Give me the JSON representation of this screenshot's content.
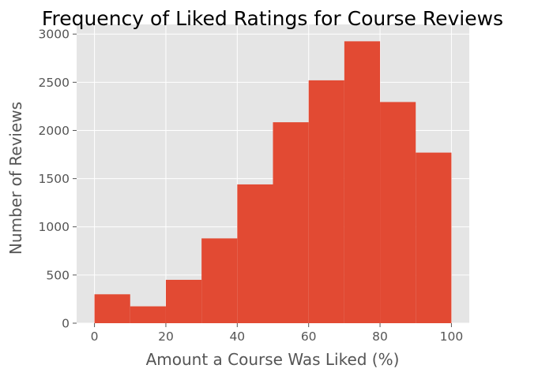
{
  "chart_data": {
    "type": "bar",
    "title": "Frequency of Liked Ratings for Course Reviews",
    "xlabel": "Amount a Course Was Liked (%)",
    "ylabel": "Number of Reviews",
    "bins": [
      {
        "start": 0,
        "end": 10,
        "value": 300
      },
      {
        "start": 10,
        "end": 20,
        "value": 175
      },
      {
        "start": 20,
        "end": 30,
        "value": 450
      },
      {
        "start": 30,
        "end": 40,
        "value": 880
      },
      {
        "start": 40,
        "end": 50,
        "value": 1440
      },
      {
        "start": 50,
        "end": 60,
        "value": 2085
      },
      {
        "start": 60,
        "end": 70,
        "value": 2520
      },
      {
        "start": 70,
        "end": 80,
        "value": 2925
      },
      {
        "start": 80,
        "end": 90,
        "value": 2295
      },
      {
        "start": 90,
        "end": 100,
        "value": 1770
      }
    ],
    "xlim": [
      -5,
      105
    ],
    "ylim": [
      0,
      3100
    ],
    "xticks": [
      0,
      20,
      40,
      60,
      80,
      100
    ],
    "yticks": [
      0,
      500,
      1000,
      1500,
      2000,
      2500,
      3000
    ],
    "grid": true,
    "bar_color": "#E24A33",
    "background_color": "#E5E5E5",
    "grid_color": "#FFFFFF"
  }
}
